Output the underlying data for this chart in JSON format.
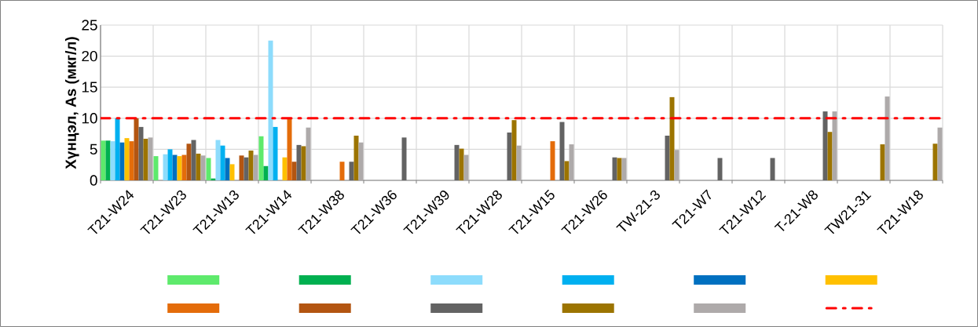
{
  "chart_data": {
    "type": "bar",
    "ylabel": "Хүнцэл, As (мкг/л)",
    "categories": [
      "T21-W24",
      "T21-W23",
      "T21-W13",
      "T21-W14",
      "T21-W38",
      "T21-W36",
      "T21-W39",
      "T21-W28",
      "T21-W15",
      "T21-W26",
      "TW-21-3",
      "T21-W7",
      "T21-W12",
      "T-21-W8",
      "TW21-31",
      "T21-W18"
    ],
    "series": [
      {
        "color": "#5eea6c",
        "values": [
          6.4,
          3.9,
          3.6,
          7.1,
          null,
          null,
          null,
          null,
          null,
          null,
          null,
          null,
          null,
          null,
          null,
          null
        ]
      },
      {
        "color": "#00b050",
        "values": [
          6.4,
          null,
          0.3,
          2.3,
          null,
          null,
          null,
          null,
          null,
          null,
          null,
          null,
          null,
          null,
          null,
          null
        ]
      },
      {
        "color": "#8ddcfc",
        "values": [
          6.3,
          4.2,
          6.5,
          22.5,
          null,
          null,
          null,
          null,
          null,
          null,
          null,
          null,
          null,
          null,
          null,
          null
        ]
      },
      {
        "color": "#00b0f0",
        "values": [
          10,
          5.0,
          5.6,
          8.6,
          null,
          null,
          null,
          null,
          null,
          null,
          null,
          null,
          null,
          null,
          null,
          null
        ]
      },
      {
        "color": "#0070c0",
        "values": [
          6.1,
          4.1,
          3.6,
          null,
          null,
          null,
          null,
          null,
          null,
          null,
          null,
          null,
          null,
          null,
          null,
          null
        ]
      },
      {
        "color": "#ffc000",
        "values": [
          6.8,
          3.9,
          2.6,
          3.7,
          null,
          null,
          null,
          null,
          null,
          null,
          null,
          null,
          null,
          null,
          null,
          null
        ]
      },
      {
        "color": "#e46c0a",
        "values": [
          6.3,
          4.1,
          null,
          10.0,
          3.0,
          null,
          null,
          null,
          6.3,
          null,
          null,
          null,
          null,
          null,
          null,
          null
        ]
      },
      {
        "color": "#b35511",
        "values": [
          10,
          5.9,
          4.0,
          3.0,
          null,
          null,
          null,
          null,
          null,
          null,
          null,
          null,
          null,
          null,
          null,
          null
        ]
      },
      {
        "color": "#636363",
        "values": [
          8.6,
          6.5,
          3.7,
          5.7,
          3.0,
          6.9,
          5.7,
          7.7,
          9.4,
          3.7,
          7.2,
          3.6,
          3.6,
          11.1,
          null,
          null
        ]
      },
      {
        "color": "#9c7400",
        "values": [
          6.7,
          4.3,
          4.8,
          5.5,
          7.2,
          null,
          5.1,
          9.7,
          3.1,
          3.6,
          13.4,
          null,
          null,
          7.8,
          5.8,
          5.9
        ]
      },
      {
        "color": "#aeaaaa",
        "values": [
          6.9,
          4.0,
          4.1,
          8.5,
          6.1,
          null,
          4.1,
          5.6,
          5.8,
          3.6,
          4.9,
          null,
          null,
          11.1,
          13.5,
          8.5
        ]
      }
    ],
    "ylim": [
      0,
      25
    ],
    "yticks": [
      0,
      5,
      10,
      15,
      20,
      25
    ],
    "ref_lines": [
      {
        "axis": "y",
        "value": 10,
        "color": "#ff0000",
        "line_style": "dashdot"
      }
    ],
    "grid": true
  }
}
